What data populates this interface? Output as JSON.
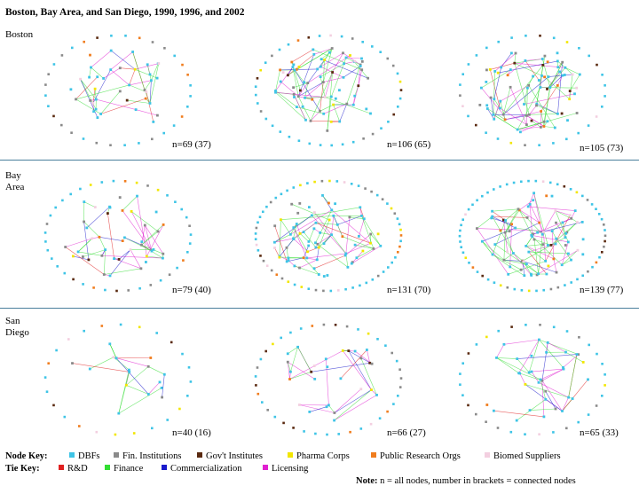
{
  "title": "Boston, Bay Area, and San Diego, 1990, 1996, and 2002",
  "rows": [
    {
      "label_lines": [
        "Boston"
      ],
      "panels": [
        {
          "n_label": "n=69 (37)",
          "nodes": 69,
          "connected": 37
        },
        {
          "n_label": "n=106 (65)",
          "nodes": 106,
          "connected": 65
        },
        {
          "n_label": "n=105 (73)",
          "nodes": 105,
          "connected": 73
        }
      ]
    },
    {
      "label_lines": [
        "Bay",
        "Area"
      ],
      "panels": [
        {
          "n_label": "n=79 (40)",
          "nodes": 79,
          "connected": 40
        },
        {
          "n_label": "n=131 (70)",
          "nodes": 131,
          "connected": 70
        },
        {
          "n_label": "n=139 (77)",
          "nodes": 139,
          "connected": 77
        }
      ]
    },
    {
      "label_lines": [
        "San",
        "Diego"
      ],
      "panels": [
        {
          "n_label": "n=40 (16)",
          "nodes": 40,
          "connected": 16
        },
        {
          "n_label": "n=66 (27)",
          "nodes": 66,
          "connected": 27
        },
        {
          "n_label": "n=65 (33)",
          "nodes": 65,
          "connected": 33
        }
      ]
    }
  ],
  "node_key": {
    "title": "Node Key:",
    "items": [
      {
        "label": "DBFs",
        "color": "#3ec4e6"
      },
      {
        "label": "Fin. Institutions",
        "color": "#8a8a8a"
      },
      {
        "label": "Gov't Institutes",
        "color": "#5a2a10"
      },
      {
        "label": "Pharma Corps",
        "color": "#f2e600"
      },
      {
        "label": "Public Research Orgs",
        "color": "#f07d1e"
      },
      {
        "label": "Biomed Suppliers",
        "color": "#f3cfe0"
      }
    ]
  },
  "tie_key": {
    "title": "Tie Key:",
    "items": [
      {
        "label": "R&D",
        "color": "#e02020"
      },
      {
        "label": "Finance",
        "color": "#33dd33"
      },
      {
        "label": "Commercialization",
        "color": "#1a1acc"
      },
      {
        "label": "Licensing",
        "color": "#e020d0"
      }
    ]
  },
  "note": {
    "label": "Note:",
    "text": "n = all nodes, number in brackets = connected nodes"
  }
}
